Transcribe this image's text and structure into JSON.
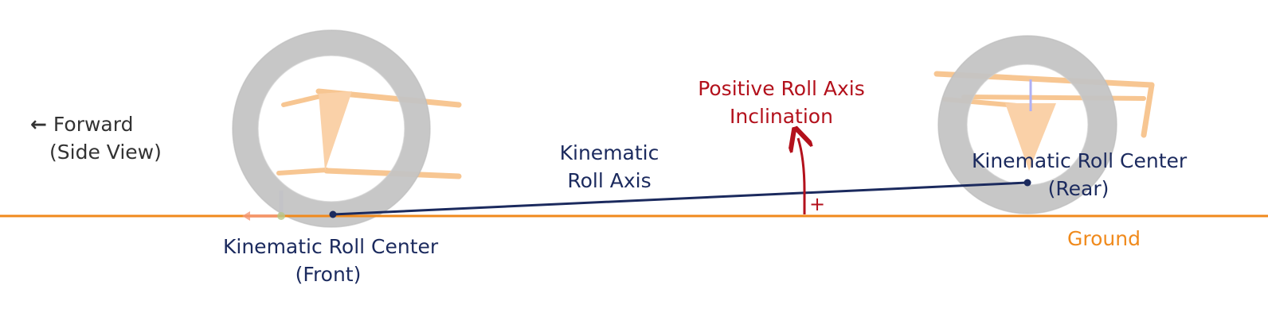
{
  "forward": {
    "arrow_icon": "left-arrow-icon",
    "line1": "Forward",
    "line2": "(Side View)"
  },
  "front_roll_center": {
    "line1": "Kinematic Roll Center",
    "line2": "(Front)"
  },
  "rear_roll_center": {
    "line1": "Kinematic Roll Center",
    "line2": "(Rear)"
  },
  "roll_axis": {
    "line1": "Kinematic",
    "line2": "Roll Axis"
  },
  "inclination": {
    "line1": "Positive Roll Axis",
    "line2": "Inclination",
    "sign": "+"
  },
  "ground": {
    "label": "Ground"
  },
  "colors": {
    "navy": "#1b2a5e",
    "red": "#b3111c",
    "orange": "#f08a1c",
    "tire": "#c4c4c4",
    "suspension": "#f7c48a"
  }
}
